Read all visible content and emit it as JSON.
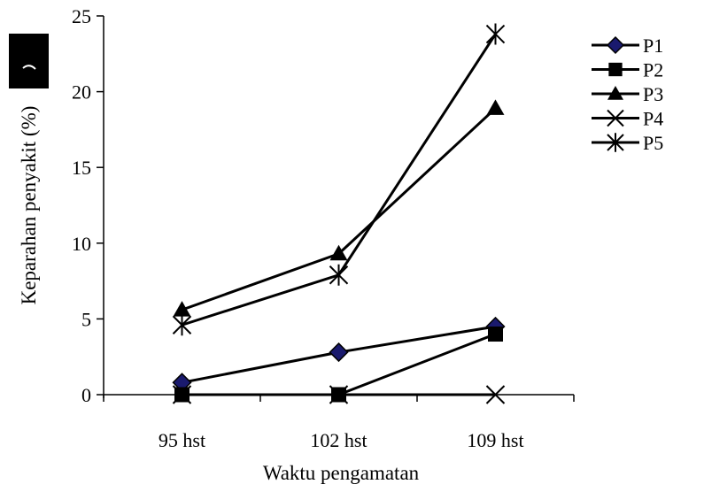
{
  "chart_data": {
    "type": "line",
    "title": "",
    "xlabel": "Waktu pengamatan",
    "ylabel": "Keparahan penyakit (%)",
    "categories": [
      "95 hst",
      "102 hst",
      "109 hst"
    ],
    "ylim": [
      0,
      25
    ],
    "yticks": [
      "0",
      "5",
      "10",
      "15",
      "20",
      "25"
    ],
    "grid": false,
    "legend_position": "right",
    "series": [
      {
        "name": "P1",
        "marker": "diamond",
        "values": [
          0.8,
          2.8,
          4.5
        ]
      },
      {
        "name": "P2",
        "marker": "square",
        "values": [
          0,
          0,
          4.0
        ]
      },
      {
        "name": "P3",
        "marker": "triangle",
        "values": [
          5.6,
          9.3,
          18.9
        ]
      },
      {
        "name": "P4",
        "marker": "x",
        "values": [
          0,
          0,
          0
        ]
      },
      {
        "name": "P5",
        "marker": "asterisk",
        "values": [
          4.6,
          7.9,
          23.8
        ]
      }
    ]
  },
  "colors": {
    "line": "#000000",
    "diamond_fill": "#1a1a6e",
    "background": "#ffffff"
  }
}
